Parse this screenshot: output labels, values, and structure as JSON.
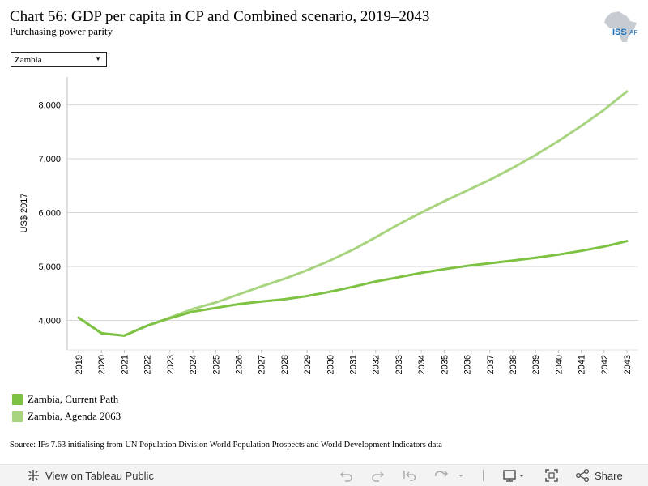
{
  "header": {
    "title": "Chart 56: GDP per capita in CP and Combined scenario, 2019–2043",
    "subtitle": "Purchasing power parity",
    "logo_text": "ISS",
    "logo_text_suffix": "AF"
  },
  "filter": {
    "selected": "Zambia"
  },
  "chart_data": {
    "type": "line",
    "x": [
      2019,
      2020,
      2021,
      2022,
      2023,
      2024,
      2025,
      2026,
      2027,
      2028,
      2029,
      2030,
      2031,
      2032,
      2033,
      2034,
      2035,
      2036,
      2037,
      2038,
      2039,
      2040,
      2041,
      2042,
      2043
    ],
    "ylabel": "US$ 2017",
    "ylim": [
      3450,
      8520
    ],
    "yticks": [
      4000,
      5000,
      6000,
      7000,
      8000
    ],
    "ytick_labels": [
      "4,000",
      "5,000",
      "6,000",
      "7,000",
      "8,000"
    ],
    "grid": true,
    "series": [
      {
        "name": "Zambia, Current Path",
        "color": "#7dc242",
        "values": [
          4050,
          3760,
          3715,
          3900,
          4040,
          4160,
          4230,
          4300,
          4350,
          4390,
          4450,
          4530,
          4620,
          4720,
          4800,
          4880,
          4950,
          5010,
          5060,
          5110,
          5160,
          5220,
          5290,
          5370,
          5470
        ]
      },
      {
        "name": "Zambia, Agenda 2063",
        "color": "#a8d47f",
        "values": [
          4050,
          3760,
          3715,
          3900,
          4050,
          4210,
          4330,
          4480,
          4630,
          4770,
          4930,
          5110,
          5310,
          5540,
          5780,
          6000,
          6210,
          6410,
          6610,
          6830,
          7070,
          7330,
          7610,
          7910,
          8250
        ]
      }
    ],
    "legend_position": "bottom-left"
  },
  "source": "Source: IFs 7.63 initialising from UN Population Division World Population Prospects and World Development Indicators data",
  "toolbar": {
    "view_label": "View on Tableau Public",
    "share_label": "Share",
    "icons": [
      "tableau-icon",
      "undo-icon",
      "redo-icon",
      "revert-icon",
      "refresh-icon",
      "download-icon",
      "fullscreen-icon",
      "share-icon"
    ]
  }
}
